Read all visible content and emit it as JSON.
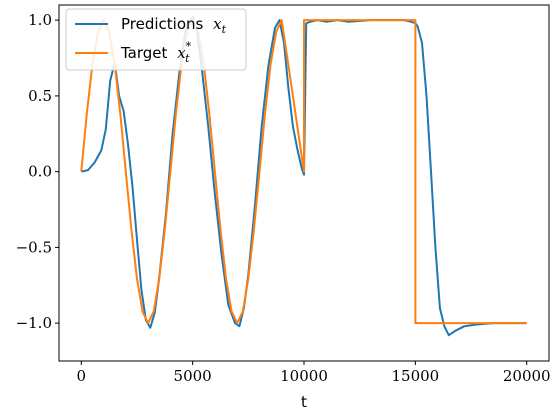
{
  "chart_data": {
    "type": "line",
    "title": "",
    "xlabel": "t",
    "ylabel": "",
    "xlim": [
      -1000,
      21000
    ],
    "ylim": [
      -1.25,
      1.1
    ],
    "xticks": [
      0,
      5000,
      10000,
      15000,
      20000
    ],
    "xtick_labels": [
      "0",
      "5000",
      "10000",
      "15000",
      "20000"
    ],
    "yticks": [
      -1.0,
      -0.5,
      0.0,
      0.5,
      1.0
    ],
    "ytick_labels": [
      "−1.0",
      "−0.5",
      "0.0",
      "0.5",
      "1.0"
    ],
    "grid": false,
    "legend": {
      "placement": "top-left",
      "entries": [
        {
          "label": "Predictions",
          "math": "x",
          "sub": "t",
          "sup": "",
          "color": "#1f77b4"
        },
        {
          "label": "Target",
          "math": "x",
          "sub": "t",
          "sup": "*",
          "color": "#ff7f0e"
        }
      ]
    },
    "series": [
      {
        "name": "Predictions x_t",
        "color": "#1f77b4",
        "x": [
          0,
          300,
          600,
          900,
          1100,
          1300,
          1500,
          1700,
          1900,
          2100,
          2300,
          2500,
          2700,
          2900,
          3100,
          3300,
          3500,
          3800,
          4100,
          4400,
          4700,
          5000,
          5200,
          5400,
          5700,
          6000,
          6300,
          6600,
          6900,
          7100,
          7300,
          7500,
          7800,
          8100,
          8400,
          8700,
          8900,
          9100,
          9300,
          9500,
          9700,
          9900,
          10000,
          10100,
          10300,
          10600,
          11000,
          11500,
          12000,
          13000,
          14000,
          14500,
          14800,
          15000,
          15100,
          15300,
          15500,
          15700,
          15900,
          16100,
          16300,
          16500,
          16800,
          17200,
          17700,
          18500,
          19500,
          20000
        ],
        "y": [
          0.0,
          0.01,
          0.06,
          0.14,
          0.28,
          0.6,
          0.72,
          0.5,
          0.4,
          0.18,
          -0.1,
          -0.45,
          -0.78,
          -0.98,
          -1.03,
          -0.93,
          -0.7,
          -0.28,
          0.25,
          0.65,
          0.95,
          1.02,
          0.92,
          0.7,
          0.3,
          -0.15,
          -0.55,
          -0.88,
          -1.0,
          -1.02,
          -0.9,
          -0.68,
          -0.22,
          0.3,
          0.7,
          0.95,
          1.0,
          0.85,
          0.55,
          0.3,
          0.15,
          0.02,
          -0.02,
          0.98,
          0.99,
          1.0,
          0.99,
          1.0,
          0.99,
          1.0,
          1.0,
          1.0,
          0.99,
          0.98,
          0.96,
          0.85,
          0.5,
          0.0,
          -0.5,
          -0.9,
          -1.02,
          -1.08,
          -1.05,
          -1.02,
          -1.01,
          -1.0,
          -1.0,
          -1.0
        ]
      },
      {
        "name": "Target x_t^*",
        "color": "#ff7f0e",
        "x": [
          0,
          250,
          500,
          750,
          1000,
          1250,
          1500,
          1750,
          2000,
          2250,
          2500,
          2750,
          3000,
          3250,
          3500,
          3750,
          4000,
          4250,
          4500,
          4750,
          5000,
          5250,
          5500,
          5750,
          6000,
          6250,
          6500,
          6750,
          7000,
          7250,
          7500,
          7750,
          8000,
          8250,
          8500,
          8750,
          9000,
          9250,
          9500,
          9750,
          10000,
          10000,
          15000,
          15000,
          20000
        ],
        "y": [
          0.0,
          0.383,
          0.707,
          0.924,
          1.0,
          0.924,
          0.707,
          0.383,
          0.0,
          -0.383,
          -0.707,
          -0.924,
          -1.0,
          -0.924,
          -0.707,
          -0.383,
          0.0,
          0.383,
          0.707,
          0.924,
          1.0,
          0.924,
          0.707,
          0.383,
          0.0,
          -0.383,
          -0.707,
          -0.924,
          -1.0,
          -0.924,
          -0.707,
          -0.383,
          0.0,
          0.383,
          0.707,
          0.924,
          1.0,
          0.75,
          0.5,
          0.25,
          0.0,
          1.0,
          1.0,
          -1.0,
          -1.0
        ]
      }
    ]
  }
}
